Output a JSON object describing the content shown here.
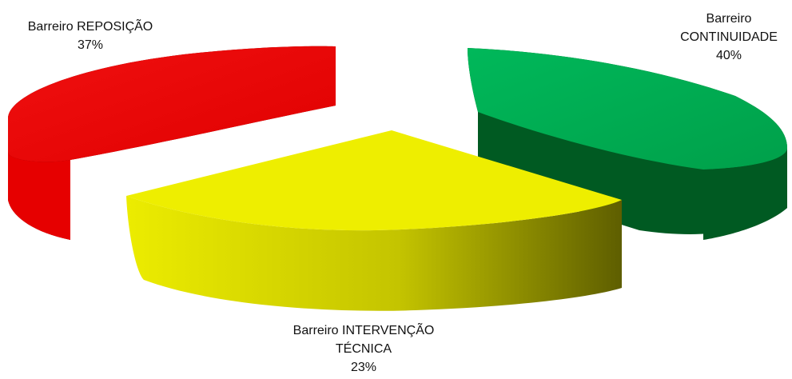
{
  "chart_data": {
    "type": "pie",
    "style": "3d-exploded",
    "slices": [
      {
        "label_lines": [
          "Barreiro REPOSIÇÃO"
        ],
        "value": 37,
        "value_label": "37%",
        "color": "#e60000",
        "side_color": "#7a0000"
      },
      {
        "label_lines": [
          "Barreiro",
          "CONTINUIDADE"
        ],
        "value": 40,
        "value_label": "40%",
        "color": "#00a650",
        "side_color": "#005a22"
      },
      {
        "label_lines": [
          "Barreiro INTERVENÇÃO",
          "TÉCNICA"
        ],
        "value": 23,
        "value_label": "23%",
        "color": "#eeee00",
        "side_color": "#6b6b00"
      }
    ]
  }
}
